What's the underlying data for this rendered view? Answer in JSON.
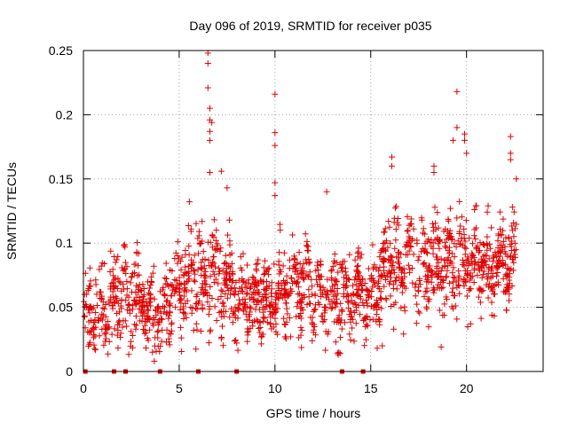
{
  "chart_data": {
    "type": "scatter",
    "title": "Day 096 of 2019, SRMTID for receiver p035",
    "xlabel": "GPS time / hours",
    "ylabel": "SRMTID / TECUs",
    "xlim": [
      0,
      24
    ],
    "ylim": [
      0,
      0.25
    ],
    "x_ticks": [
      0,
      5,
      10,
      15,
      20
    ],
    "x_tick_labels": [
      "0",
      "5",
      "10",
      "15",
      "20"
    ],
    "y_ticks": [
      0,
      0.05,
      0.1,
      0.15,
      0.2,
      0.25
    ],
    "y_tick_labels": [
      "0",
      "0.05",
      "0.1",
      "0.15",
      "0.2",
      "0.25"
    ],
    "grid": true,
    "marker": "plus",
    "color": "#e00000",
    "baseline_markers_x": [
      0.1,
      1.6,
      2.2,
      4.0,
      6.0,
      8.0,
      13.5,
      14.6
    ],
    "outlier_points": [
      {
        "x": 6.5,
        "y": 0.248
      },
      {
        "x": 6.5,
        "y": 0.24
      },
      {
        "x": 6.5,
        "y": 0.221
      },
      {
        "x": 6.6,
        "y": 0.205
      },
      {
        "x": 6.6,
        "y": 0.196
      },
      {
        "x": 6.7,
        "y": 0.194
      },
      {
        "x": 6.6,
        "y": 0.187
      },
      {
        "x": 6.6,
        "y": 0.18
      },
      {
        "x": 6.6,
        "y": 0.155
      },
      {
        "x": 7.2,
        "y": 0.156
      },
      {
        "x": 7.5,
        "y": 0.143
      },
      {
        "x": 10.0,
        "y": 0.216
      },
      {
        "x": 10.0,
        "y": 0.186
      },
      {
        "x": 10.0,
        "y": 0.176
      },
      {
        "x": 10.0,
        "y": 0.147
      },
      {
        "x": 10.0,
        "y": 0.137
      },
      {
        "x": 12.7,
        "y": 0.14
      },
      {
        "x": 19.5,
        "y": 0.218
      },
      {
        "x": 19.5,
        "y": 0.19
      },
      {
        "x": 19.9,
        "y": 0.185
      },
      {
        "x": 19.9,
        "y": 0.18
      },
      {
        "x": 19.3,
        "y": 0.18
      },
      {
        "x": 20.0,
        "y": 0.17
      },
      {
        "x": 22.3,
        "y": 0.183
      },
      {
        "x": 22.3,
        "y": 0.17
      },
      {
        "x": 22.3,
        "y": 0.165
      },
      {
        "x": 22.6,
        "y": 0.15
      },
      {
        "x": 16.1,
        "y": 0.167
      },
      {
        "x": 16.1,
        "y": 0.16
      },
      {
        "x": 18.3,
        "y": 0.16
      },
      {
        "x": 18.3,
        "y": 0.155
      },
      {
        "x": 3.7,
        "y": 0.008
      },
      {
        "x": 3.6,
        "y": 0.015
      },
      {
        "x": 13.3,
        "y": 0.013
      },
      {
        "x": 15.6,
        "y": 0.02
      }
    ],
    "density_profile": {
      "hours": [
        0,
        1,
        2,
        3,
        4,
        5,
        6,
        7,
        8,
        9,
        10,
        11,
        12,
        13,
        14,
        15,
        16,
        17,
        18,
        19,
        20,
        21,
        22,
        22.6
      ],
      "mean": [
        0.045,
        0.05,
        0.06,
        0.055,
        0.045,
        0.07,
        0.075,
        0.075,
        0.065,
        0.055,
        0.06,
        0.07,
        0.065,
        0.055,
        0.06,
        0.06,
        0.085,
        0.08,
        0.08,
        0.085,
        0.09,
        0.08,
        0.085,
        0.09
      ],
      "spread": [
        0.02,
        0.025,
        0.025,
        0.02,
        0.02,
        0.025,
        0.03,
        0.025,
        0.02,
        0.02,
        0.02,
        0.02,
        0.02,
        0.025,
        0.02,
        0.02,
        0.025,
        0.025,
        0.025,
        0.025,
        0.025,
        0.02,
        0.02,
        0.02
      ],
      "points_per_hour": 80
    }
  }
}
